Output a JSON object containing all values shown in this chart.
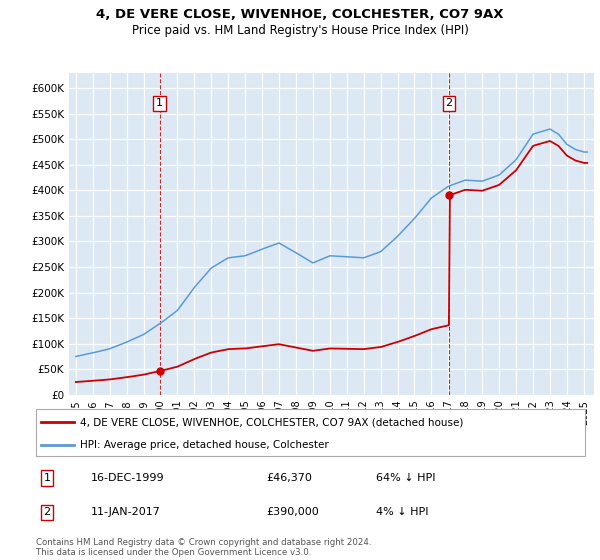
{
  "title": "4, DE VERE CLOSE, WIVENHOE, COLCHESTER, CO7 9AX",
  "subtitle": "Price paid vs. HM Land Registry's House Price Index (HPI)",
  "ylabel_ticks": [
    "£0",
    "£50K",
    "£100K",
    "£150K",
    "£200K",
    "£250K",
    "£300K",
    "£350K",
    "£400K",
    "£450K",
    "£500K",
    "£550K",
    "£600K"
  ],
  "ylim": [
    0,
    630000
  ],
  "ytick_vals": [
    0,
    50000,
    100000,
    150000,
    200000,
    250000,
    300000,
    350000,
    400000,
    450000,
    500000,
    550000,
    600000
  ],
  "sale1_date": 1999.96,
  "sale1_price": 46370,
  "sale2_date": 2017.03,
  "sale2_price": 390000,
  "bg_color": "#dce9f5",
  "legend1": "4, DE VERE CLOSE, WIVENHOE, COLCHESTER, CO7 9AX (detached house)",
  "legend2": "HPI: Average price, detached house, Colchester",
  "annotation1_date": "16-DEC-1999",
  "annotation1_price": "£46,370",
  "annotation1_pct": "64% ↓ HPI",
  "annotation2_date": "11-JAN-2017",
  "annotation2_price": "£390,000",
  "annotation2_pct": "4% ↓ HPI",
  "footer": "Contains HM Land Registry data © Crown copyright and database right 2024.\nThis data is licensed under the Open Government Licence v3.0.",
  "red_color": "#cc0000",
  "blue_color": "#5b9bd5",
  "xlim_left": 1994.6,
  "xlim_right": 2025.6
}
